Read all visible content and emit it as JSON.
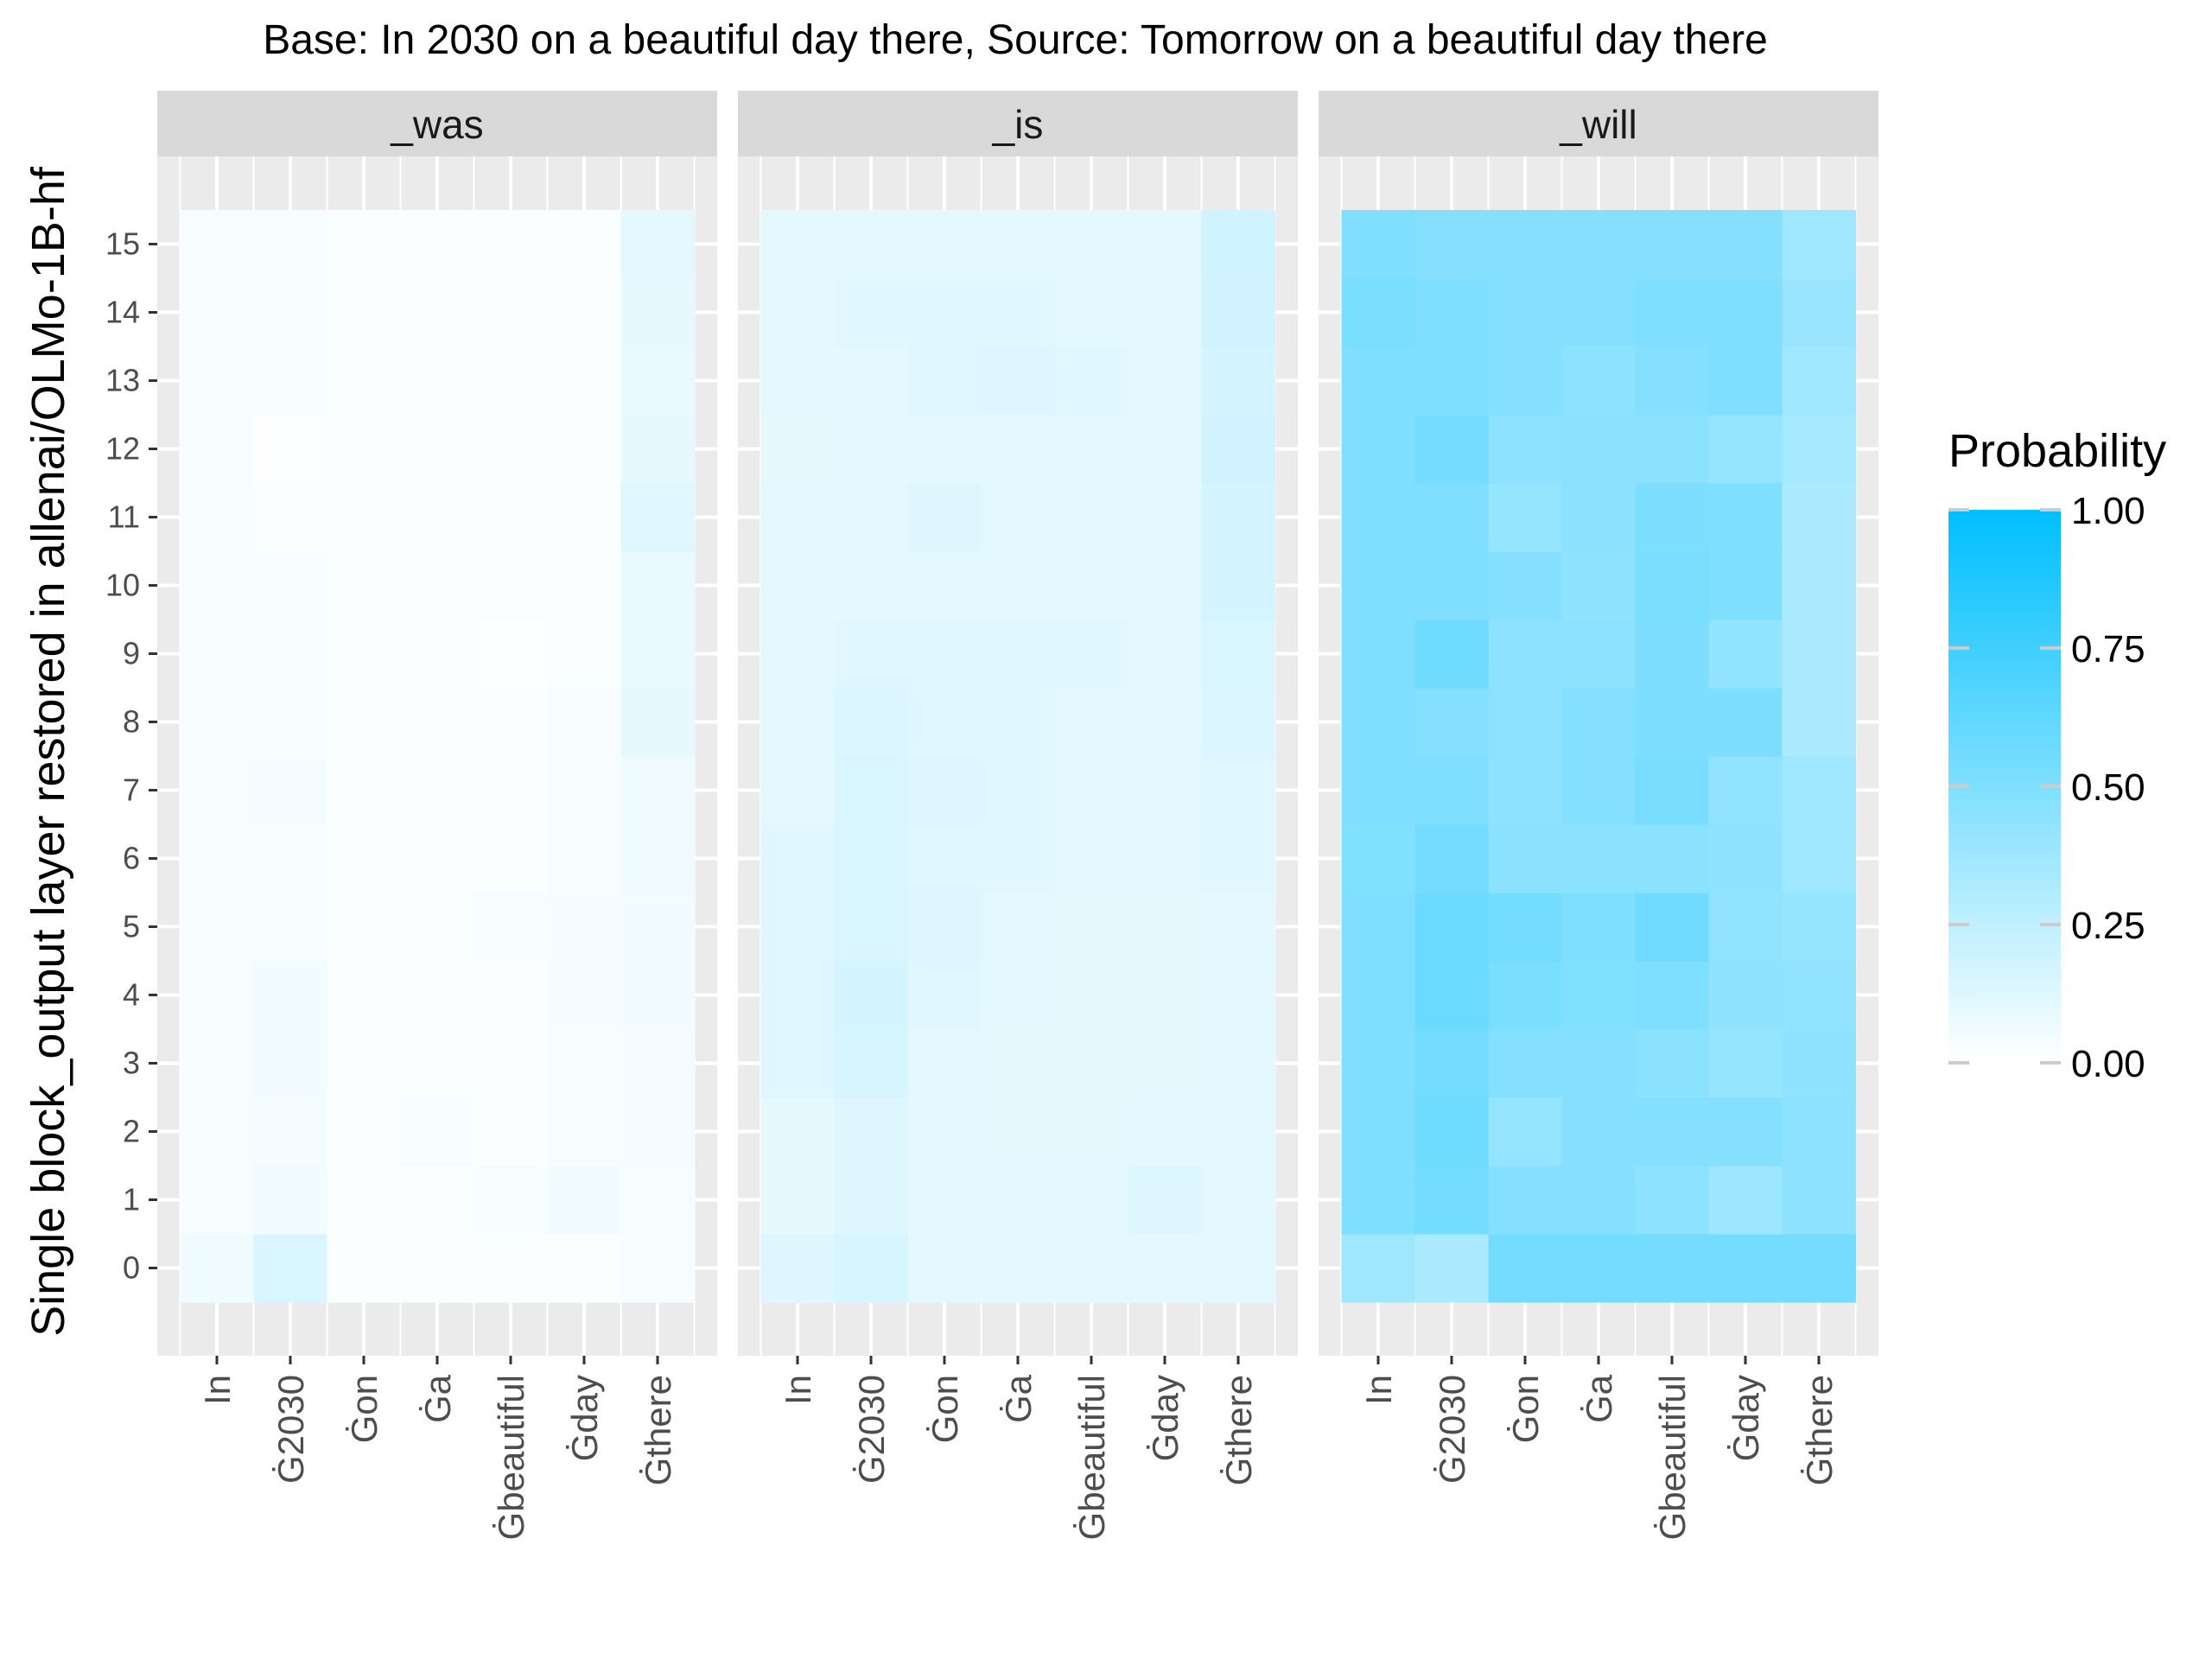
{
  "chart_data": {
    "type": "heatmap",
    "title": "Base: In 2030 on a beautiful day there, Source: Tomorrow on a beautiful day there",
    "ylabel": "Single block_output layer restored in allenai/OLMo-1B-hf",
    "xlabel": "",
    "x_tokens": [
      "In",
      "Ġ2030",
      "Ġon",
      "Ġa",
      "Ġbeautiful",
      "Ġday",
      "Ġthere"
    ],
    "y_layers": [
      "0",
      "1",
      "2",
      "3",
      "4",
      "5",
      "6",
      "7",
      "8",
      "9",
      "10",
      "11",
      "12",
      "13",
      "14",
      "15"
    ],
    "facets": [
      "_was",
      "_is",
      "_will"
    ],
    "legend": {
      "title": "Probability",
      "ticks": [
        "0.00",
        "0.25",
        "0.50",
        "0.75",
        "1.00"
      ],
      "tick_values": [
        0,
        0.25,
        0.5,
        0.75,
        1.0
      ],
      "low_color": "#ffffff",
      "high_color": "#00bfff",
      "position": "right"
    },
    "grid": true,
    "panel_background": "#ebebeb",
    "strip_background": "#d9d9d9",
    "values": {
      "_was": [
        [
          0.06,
          0.15,
          0.02,
          0.02,
          0.02,
          0.02,
          0.03
        ],
        [
          0.03,
          0.05,
          0.02,
          0.02,
          0.03,
          0.05,
          0.03
        ],
        [
          0.03,
          0.04,
          0.02,
          0.03,
          0.02,
          0.03,
          0.04
        ],
        [
          0.03,
          0.05,
          0.02,
          0.02,
          0.02,
          0.03,
          0.04
        ],
        [
          0.03,
          0.05,
          0.02,
          0.02,
          0.02,
          0.04,
          0.05
        ],
        [
          0.03,
          0.03,
          0.02,
          0.02,
          0.03,
          0.04,
          0.05
        ],
        [
          0.03,
          0.03,
          0.02,
          0.02,
          0.02,
          0.03,
          0.06
        ],
        [
          0.03,
          0.04,
          0.02,
          0.02,
          0.02,
          0.03,
          0.06
        ],
        [
          0.03,
          0.03,
          0.02,
          0.02,
          0.02,
          0.03,
          0.1
        ],
        [
          0.03,
          0.03,
          0.02,
          0.02,
          0.01,
          0.02,
          0.09
        ],
        [
          0.03,
          0.03,
          0.02,
          0.02,
          0.02,
          0.02,
          0.09
        ],
        [
          0.03,
          0.02,
          0.02,
          0.02,
          0.02,
          0.02,
          0.12
        ],
        [
          0.03,
          0.01,
          0.02,
          0.02,
          0.02,
          0.02,
          0.1
        ],
        [
          0.03,
          0.03,
          0.02,
          0.02,
          0.02,
          0.02,
          0.09
        ],
        [
          0.03,
          0.03,
          0.02,
          0.02,
          0.02,
          0.02,
          0.1
        ],
        [
          0.03,
          0.03,
          0.02,
          0.02,
          0.02,
          0.02,
          0.11
        ]
      ],
      "_is": [
        [
          0.13,
          0.16,
          0.11,
          0.11,
          0.11,
          0.11,
          0.11
        ],
        [
          0.1,
          0.13,
          0.11,
          0.11,
          0.11,
          0.13,
          0.11
        ],
        [
          0.1,
          0.13,
          0.11,
          0.1,
          0.1,
          0.11,
          0.11
        ],
        [
          0.12,
          0.16,
          0.11,
          0.1,
          0.1,
          0.1,
          0.11
        ],
        [
          0.12,
          0.17,
          0.12,
          0.11,
          0.1,
          0.1,
          0.11
        ],
        [
          0.12,
          0.15,
          0.13,
          0.11,
          0.1,
          0.1,
          0.11
        ],
        [
          0.12,
          0.15,
          0.12,
          0.12,
          0.11,
          0.11,
          0.12
        ],
        [
          0.11,
          0.15,
          0.13,
          0.12,
          0.11,
          0.11,
          0.12
        ],
        [
          0.11,
          0.14,
          0.12,
          0.12,
          0.11,
          0.11,
          0.14
        ],
        [
          0.11,
          0.12,
          0.12,
          0.12,
          0.12,
          0.11,
          0.15
        ],
        [
          0.11,
          0.11,
          0.11,
          0.11,
          0.11,
          0.11,
          0.17
        ],
        [
          0.11,
          0.11,
          0.13,
          0.11,
          0.11,
          0.11,
          0.17
        ],
        [
          0.1,
          0.11,
          0.11,
          0.11,
          0.11,
          0.11,
          0.18
        ],
        [
          0.11,
          0.11,
          0.12,
          0.13,
          0.12,
          0.11,
          0.17
        ],
        [
          0.11,
          0.12,
          0.12,
          0.12,
          0.11,
          0.11,
          0.18
        ],
        [
          0.11,
          0.11,
          0.11,
          0.11,
          0.11,
          0.11,
          0.19
        ]
      ],
      "_will": [
        [
          0.38,
          0.33,
          0.55,
          0.55,
          0.55,
          0.55,
          0.55
        ],
        [
          0.5,
          0.55,
          0.48,
          0.48,
          0.45,
          0.39,
          0.45
        ],
        [
          0.5,
          0.57,
          0.42,
          0.48,
          0.48,
          0.48,
          0.45
        ],
        [
          0.5,
          0.55,
          0.48,
          0.48,
          0.46,
          0.41,
          0.44
        ],
        [
          0.5,
          0.58,
          0.52,
          0.49,
          0.5,
          0.44,
          0.43
        ],
        [
          0.5,
          0.58,
          0.55,
          0.5,
          0.56,
          0.43,
          0.41
        ],
        [
          0.49,
          0.54,
          0.46,
          0.46,
          0.46,
          0.44,
          0.38
        ],
        [
          0.5,
          0.5,
          0.45,
          0.48,
          0.53,
          0.43,
          0.38
        ],
        [
          0.5,
          0.48,
          0.45,
          0.48,
          0.51,
          0.51,
          0.33
        ],
        [
          0.5,
          0.57,
          0.45,
          0.45,
          0.51,
          0.43,
          0.33
        ],
        [
          0.5,
          0.5,
          0.48,
          0.44,
          0.52,
          0.5,
          0.33
        ],
        [
          0.5,
          0.5,
          0.41,
          0.46,
          0.51,
          0.5,
          0.33
        ],
        [
          0.5,
          0.55,
          0.45,
          0.46,
          0.46,
          0.42,
          0.35
        ],
        [
          0.5,
          0.5,
          0.48,
          0.45,
          0.48,
          0.5,
          0.38
        ],
        [
          0.52,
          0.5,
          0.48,
          0.48,
          0.5,
          0.5,
          0.4
        ],
        [
          0.5,
          0.48,
          0.48,
          0.48,
          0.48,
          0.48,
          0.38
        ]
      ]
    }
  }
}
